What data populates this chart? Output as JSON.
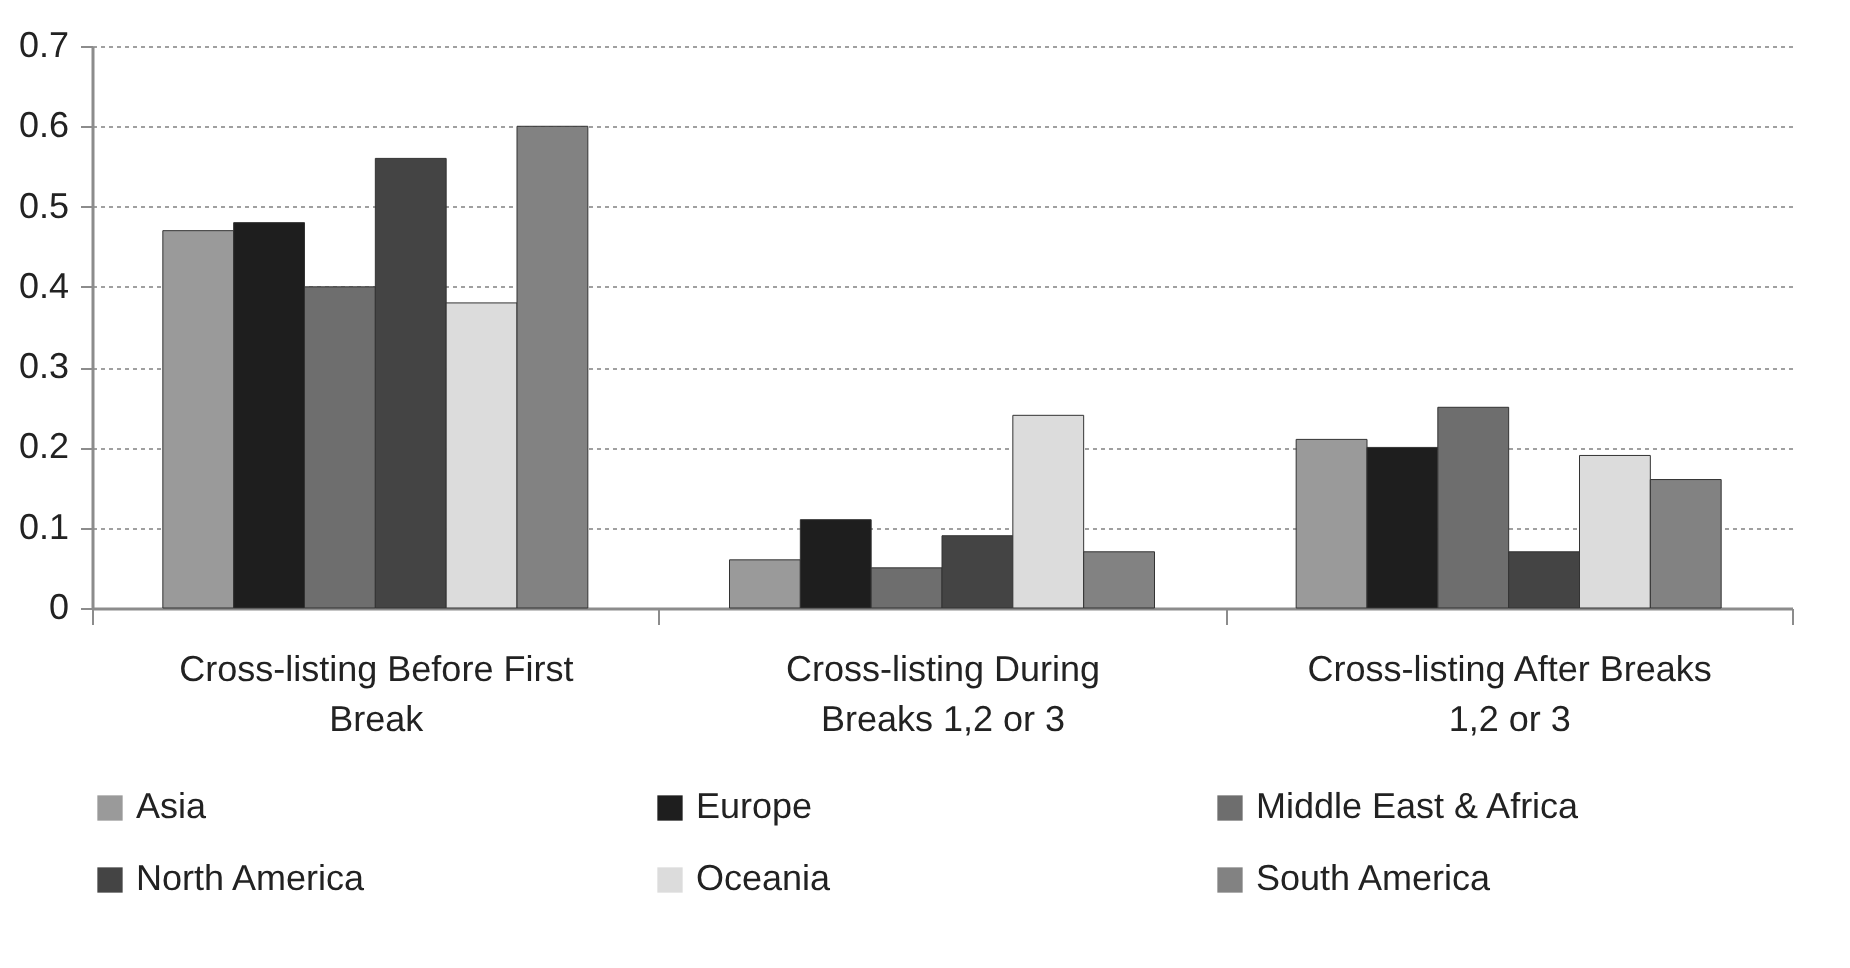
{
  "chart_data": {
    "type": "bar",
    "categories": [
      "Cross-listing Before First Break",
      "Cross-listing During Breaks 1,2 or 3",
      "Cross-listing After Breaks 1,2 or 3"
    ],
    "series": [
      {
        "name": "Asia",
        "color": "#9a9a9a",
        "values": [
          0.47,
          0.06,
          0.21
        ]
      },
      {
        "name": "Europe",
        "color": "#1e1e1e",
        "values": [
          0.48,
          0.11,
          0.2
        ]
      },
      {
        "name": "Middle East & Africa",
        "color": "#6e6e6e",
        "values": [
          0.4,
          0.05,
          0.25
        ]
      },
      {
        "name": "North America",
        "color": "#444444",
        "values": [
          0.56,
          0.09,
          0.07
        ]
      },
      {
        "name": "Oceania",
        "color": "#dcdcdc",
        "values": [
          0.38,
          0.24,
          0.19
        ]
      },
      {
        "name": "South America",
        "color": "#828282",
        "values": [
          0.6,
          0.07,
          0.16
        ]
      }
    ],
    "ylim": [
      0,
      0.7
    ],
    "yticks": [
      0,
      0.1,
      0.2,
      0.3,
      0.4,
      0.5,
      0.6,
      0.7
    ],
    "grid": "y",
    "legend": "bottom"
  }
}
